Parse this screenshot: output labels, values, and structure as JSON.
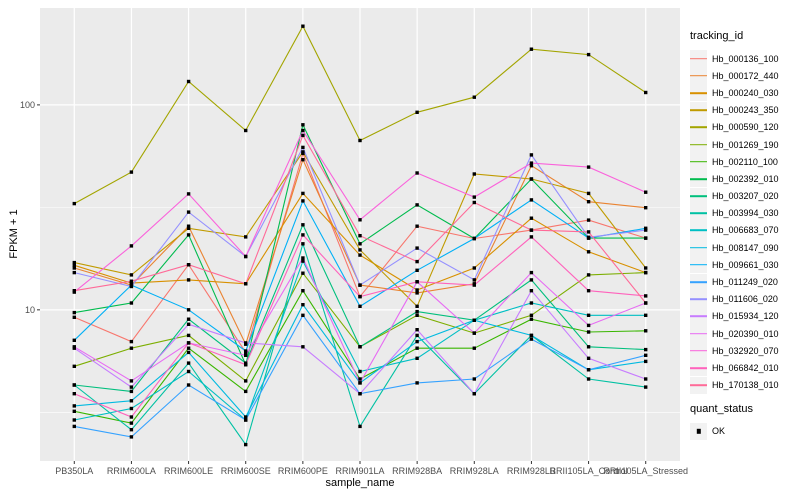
{
  "figure": {
    "background": "#FFFFFF",
    "panel_background": "#EBEBEB",
    "grid_color": "#FFFFFF",
    "tick_color": "#333333",
    "tick_label_color": "#4D4D4D",
    "axis_title_color": "#000000",
    "legend_key_background": "#F2F2F2"
  },
  "axes": {
    "y_label": "FPKM + 1",
    "x_label": "sample_name",
    "y_tick_labels": [
      "100",
      "10"
    ]
  },
  "legend": {
    "tracking_title": "tracking_id",
    "quant_title": "quant_status",
    "quant_items": [
      {
        "label": "OK",
        "marker": "black-square"
      }
    ]
  },
  "chart_data": {
    "type": "line",
    "title": "",
    "xlabel": "sample_name",
    "ylabel": "FPKM + 1",
    "y_scale": "log10",
    "ylim": [
      1.83,
      297
    ],
    "y_major_gridlines": [
      100,
      10
    ],
    "y_minor_gridlines": [
      31.62,
      3.162
    ],
    "grid": true,
    "legend_position": "right",
    "point_marker": {
      "shape": "square",
      "color": "#000000",
      "quant_status": "OK"
    },
    "categories": [
      "PB350LA",
      "RRIM600LA",
      "RRIM600LE",
      "RRIM600SE",
      "RRIM600PE",
      "RRIM901LA",
      "RRIM928BA",
      "RRIM928LA",
      "RRIM928LB",
      "RRII105LA_Control",
      "RRII105LA_Stressed"
    ],
    "series": [
      {
        "name": "Hb_000136_100",
        "color": "#F8766D",
        "values": [
          9.2,
          7.0,
          16.6,
          6.2,
          58,
          11.6,
          25.6,
          22.3,
          24.5,
          27.4,
          22.4
        ]
      },
      {
        "name": "Hb_000172_440",
        "color": "#EA8331",
        "values": [
          16.0,
          13.2,
          25.6,
          6.8,
          54,
          13.2,
          12.1,
          13.4,
          50.5,
          33.7,
          31.5
        ]
      },
      {
        "name": "Hb_000240_030",
        "color": "#D89000",
        "values": [
          16.5,
          13.5,
          14.0,
          13.4,
          37,
          18.5,
          12.5,
          16.0,
          28.0,
          19.2,
          15.2
        ]
      },
      {
        "name": "Hb_000243_350",
        "color": "#C09B00",
        "values": [
          17.0,
          14.8,
          25.0,
          22.7,
          59,
          19.6,
          10.4,
          46.0,
          43.5,
          37.0,
          16.0
        ]
      },
      {
        "name": "Hb_000590_120",
        "color": "#A3A500",
        "values": [
          33,
          47,
          130,
          75,
          242,
          67,
          92,
          109,
          187,
          176,
          115
        ]
      },
      {
        "name": "Hb_001269_190",
        "color": "#7CAE00",
        "values": [
          5.3,
          6.5,
          7.5,
          4.5,
          15.1,
          6.6,
          9.4,
          7.7,
          9.4,
          14.8,
          15.2
        ]
      },
      {
        "name": "Hb_002110_100",
        "color": "#39B600",
        "values": [
          3.2,
          2.8,
          6.5,
          4.0,
          12.4,
          4.6,
          6.5,
          6.5,
          9.0,
          7.8,
          7.9
        ]
      },
      {
        "name": "Hb_002392_010",
        "color": "#00BB4E",
        "values": [
          9.7,
          10.8,
          23.2,
          5.4,
          80,
          21.0,
          32.5,
          22.3,
          43.5,
          22.4,
          22.4
        ]
      },
      {
        "name": "Hb_003207_020",
        "color": "#00BF7D",
        "values": [
          4.3,
          4.0,
          9.0,
          5.5,
          26,
          6.6,
          9.8,
          8.9,
          14.0,
          6.6,
          6.4
        ]
      },
      {
        "name": "Hb_003994_030",
        "color": "#00C1A3",
        "values": [
          4.3,
          2.6,
          5.5,
          2.2,
          21,
          2.7,
          7.5,
          3.9,
          7.5,
          4.6,
          4.2
        ]
      },
      {
        "name": "Hb_006683_070",
        "color": "#00BFC4",
        "values": [
          2.9,
          3.3,
          5.0,
          2.9,
          17.3,
          5.0,
          5.8,
          8.9,
          10.8,
          9.4,
          9.4
        ]
      },
      {
        "name": "Hb_008147_090",
        "color": "#00BAE0",
        "values": [
          3.4,
          3.6,
          6.2,
          3.0,
          10.6,
          4.4,
          7.0,
          8.9,
          7.5,
          5.1,
          5.6
        ]
      },
      {
        "name": "Hb_009661_030",
        "color": "#00B0F6",
        "values": [
          7.1,
          13.2,
          10.0,
          6.3,
          34,
          10.4,
          15.6,
          22.3,
          34.4,
          22.4,
          25.0
        ]
      },
      {
        "name": "Hb_011249_020",
        "color": "#35A2FF",
        "values": [
          2.7,
          2.4,
          4.3,
          2.9,
          9.4,
          3.9,
          4.4,
          4.6,
          7.2,
          5.1,
          6.0
        ]
      },
      {
        "name": "Hb_011606_020",
        "color": "#9590FF",
        "values": [
          15.2,
          13.0,
          30.0,
          18.2,
          62,
          13.2,
          20.0,
          14.0,
          57.0,
          22.6,
          24.5
        ]
      },
      {
        "name": "Hb_015934_120",
        "color": "#C77CFF",
        "values": [
          6.5,
          4.2,
          8.5,
          6.9,
          6.6,
          3.9,
          8.0,
          3.9,
          12.4,
          5.8,
          4.6
        ]
      },
      {
        "name": "Hb_020390_010",
        "color": "#E76BF3",
        "values": [
          6.6,
          4.5,
          6.9,
          6.0,
          17.9,
          4.4,
          13.7,
          7.7,
          15.2,
          8.4,
          10.8
        ]
      },
      {
        "name": "Hb_032920_070",
        "color": "#FA62DB",
        "values": [
          12.2,
          20.5,
          36.8,
          18.2,
          75,
          27.5,
          46.5,
          35.5,
          52.0,
          49.7,
          37.5
        ]
      },
      {
        "name": "Hb_066842_010",
        "color": "#FF62BC",
        "values": [
          3.9,
          3.0,
          6.9,
          5.4,
          23.2,
          11.6,
          13.7,
          13.2,
          22.7,
          12.4,
          11.7
        ]
      },
      {
        "name": "Hb_170138_010",
        "color": "#FF6A98",
        "values": [
          12.4,
          13.8,
          16.6,
          13.4,
          71,
          23.0,
          17.2,
          33.4,
          24.5,
          24.0,
          10.8
        ]
      }
    ]
  }
}
